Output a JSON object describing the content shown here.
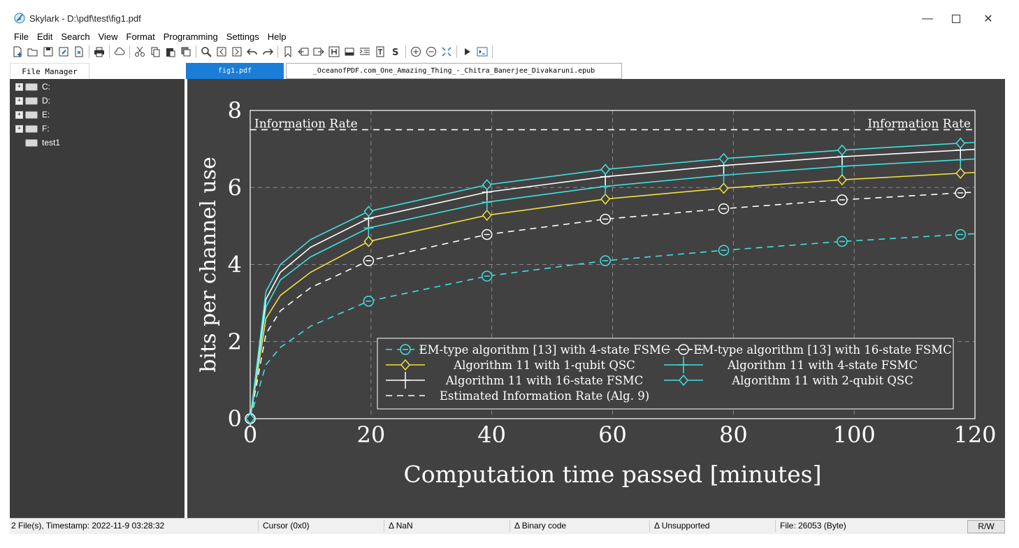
{
  "window": {
    "title": "Skylark - D:\\pdf\\test\\fig1.pdf"
  },
  "menu": [
    "File",
    "Edit",
    "Search",
    "View",
    "Format",
    "Programming",
    "Settings",
    "Help"
  ],
  "tabs": {
    "file_manager": "File Manager",
    "active": "fig1.pdf",
    "other": "_OceanofPDF.com_One_Amazing_Thing_-_Chitra_Banerjee_Divakaruni.epub"
  },
  "tree": {
    "items": [
      "C:",
      "D:",
      "E:",
      "F:",
      "test1"
    ]
  },
  "status": {
    "files": "2 File(s), Timestamp: 2022-11-9 03:28:32",
    "cursor": "Cursor (0x0)",
    "nan": "NaN",
    "binary": "Binary code",
    "unsupported": "Unsupported",
    "filesize": "File: 26053 (Byte)",
    "mode": "R/W"
  },
  "colors": {
    "viewer_bg": "#414141",
    "cyan": "#40e0e0",
    "yellow": "#f0e040",
    "white": "#ffffff",
    "accent_tab": "#1a7ed8"
  },
  "chart_data": {
    "type": "line",
    "xlabel": "Computation time passed [minutes]",
    "ylabel": "bits per channel use",
    "xlim": [
      0,
      120
    ],
    "ylim": [
      0,
      8
    ],
    "xticks": [
      "0",
      "20",
      "40",
      "60",
      "80",
      "100",
      "120"
    ],
    "yticks": [
      "0",
      "2",
      "4",
      "6",
      "8"
    ],
    "grid": true,
    "legend_position": "bottom-right",
    "info_rate_label": "Information Rate",
    "info_rate": 7.5,
    "series": [
      {
        "name": "EM-type algorithm [13] with 4-state FSMC",
        "color": "#40e0e0",
        "dash": true,
        "marker": "circle-dash",
        "x": [
          0,
          2.6,
          5,
          10,
          19.6,
          39.2,
          58.8,
          78.4,
          98,
          117.6,
          120
        ],
        "y": [
          0,
          1.4,
          1.85,
          2.4,
          3.05,
          3.7,
          4.1,
          4.37,
          4.6,
          4.78,
          4.8
        ]
      },
      {
        "name": "EM-type algorithm [13] with 16-state FSMC",
        "color": "#ffffff",
        "dash": true,
        "marker": "circle-dash",
        "x": [
          0,
          2.6,
          5,
          10,
          19.6,
          39.2,
          58.8,
          78.4,
          98,
          117.6,
          120
        ],
        "y": [
          0,
          2.2,
          2.8,
          3.4,
          4.1,
          4.78,
          5.18,
          5.45,
          5.68,
          5.86,
          5.88
        ]
      },
      {
        "name": "Algorithm 11 with 1-qubit QSC",
        "color": "#f0e040",
        "dash": false,
        "marker": "diamond",
        "x": [
          0,
          2.6,
          5,
          10,
          19.6,
          39.2,
          58.8,
          78.4,
          98,
          117.6,
          120
        ],
        "y": [
          0,
          2.6,
          3.2,
          3.8,
          4.6,
          5.28,
          5.7,
          5.98,
          6.2,
          6.37,
          6.39
        ]
      },
      {
        "name": "Algorithm 11 with 4-state FSMC",
        "color": "#40e0e0",
        "dash": false,
        "marker": "plus",
        "x": [
          0,
          2.6,
          5,
          10,
          19.6,
          39.2,
          58.8,
          78.4,
          98,
          117.6,
          120
        ],
        "y": [
          0,
          2.9,
          3.6,
          4.2,
          4.95,
          5.62,
          6.03,
          6.32,
          6.55,
          6.72,
          6.74
        ]
      },
      {
        "name": "Algorithm 11 with 16-state FSMC",
        "color": "#ffffff",
        "dash": false,
        "marker": "plus",
        "x": [
          0,
          2.6,
          5,
          10,
          19.6,
          39.2,
          58.8,
          78.4,
          98,
          117.6,
          120
        ],
        "y": [
          0,
          3.1,
          3.8,
          4.45,
          5.2,
          5.88,
          6.28,
          6.57,
          6.8,
          6.97,
          6.99
        ]
      },
      {
        "name": "Algorithm 11 with 2-qubit QSC",
        "color": "#40e0e0",
        "dash": false,
        "marker": "diamond",
        "x": [
          0,
          2.6,
          5,
          10,
          19.6,
          39.2,
          58.8,
          78.4,
          98,
          117.6,
          120
        ],
        "y": [
          0,
          3.3,
          4.0,
          4.65,
          5.38,
          6.07,
          6.47,
          6.75,
          6.97,
          7.15,
          7.17
        ]
      },
      {
        "name": "Estimated Information Rate (Alg. 9)",
        "color": "#ffffff",
        "dash": true,
        "marker": "none",
        "x": [
          0,
          120
        ],
        "y": [
          7.5,
          7.5
        ]
      }
    ]
  }
}
